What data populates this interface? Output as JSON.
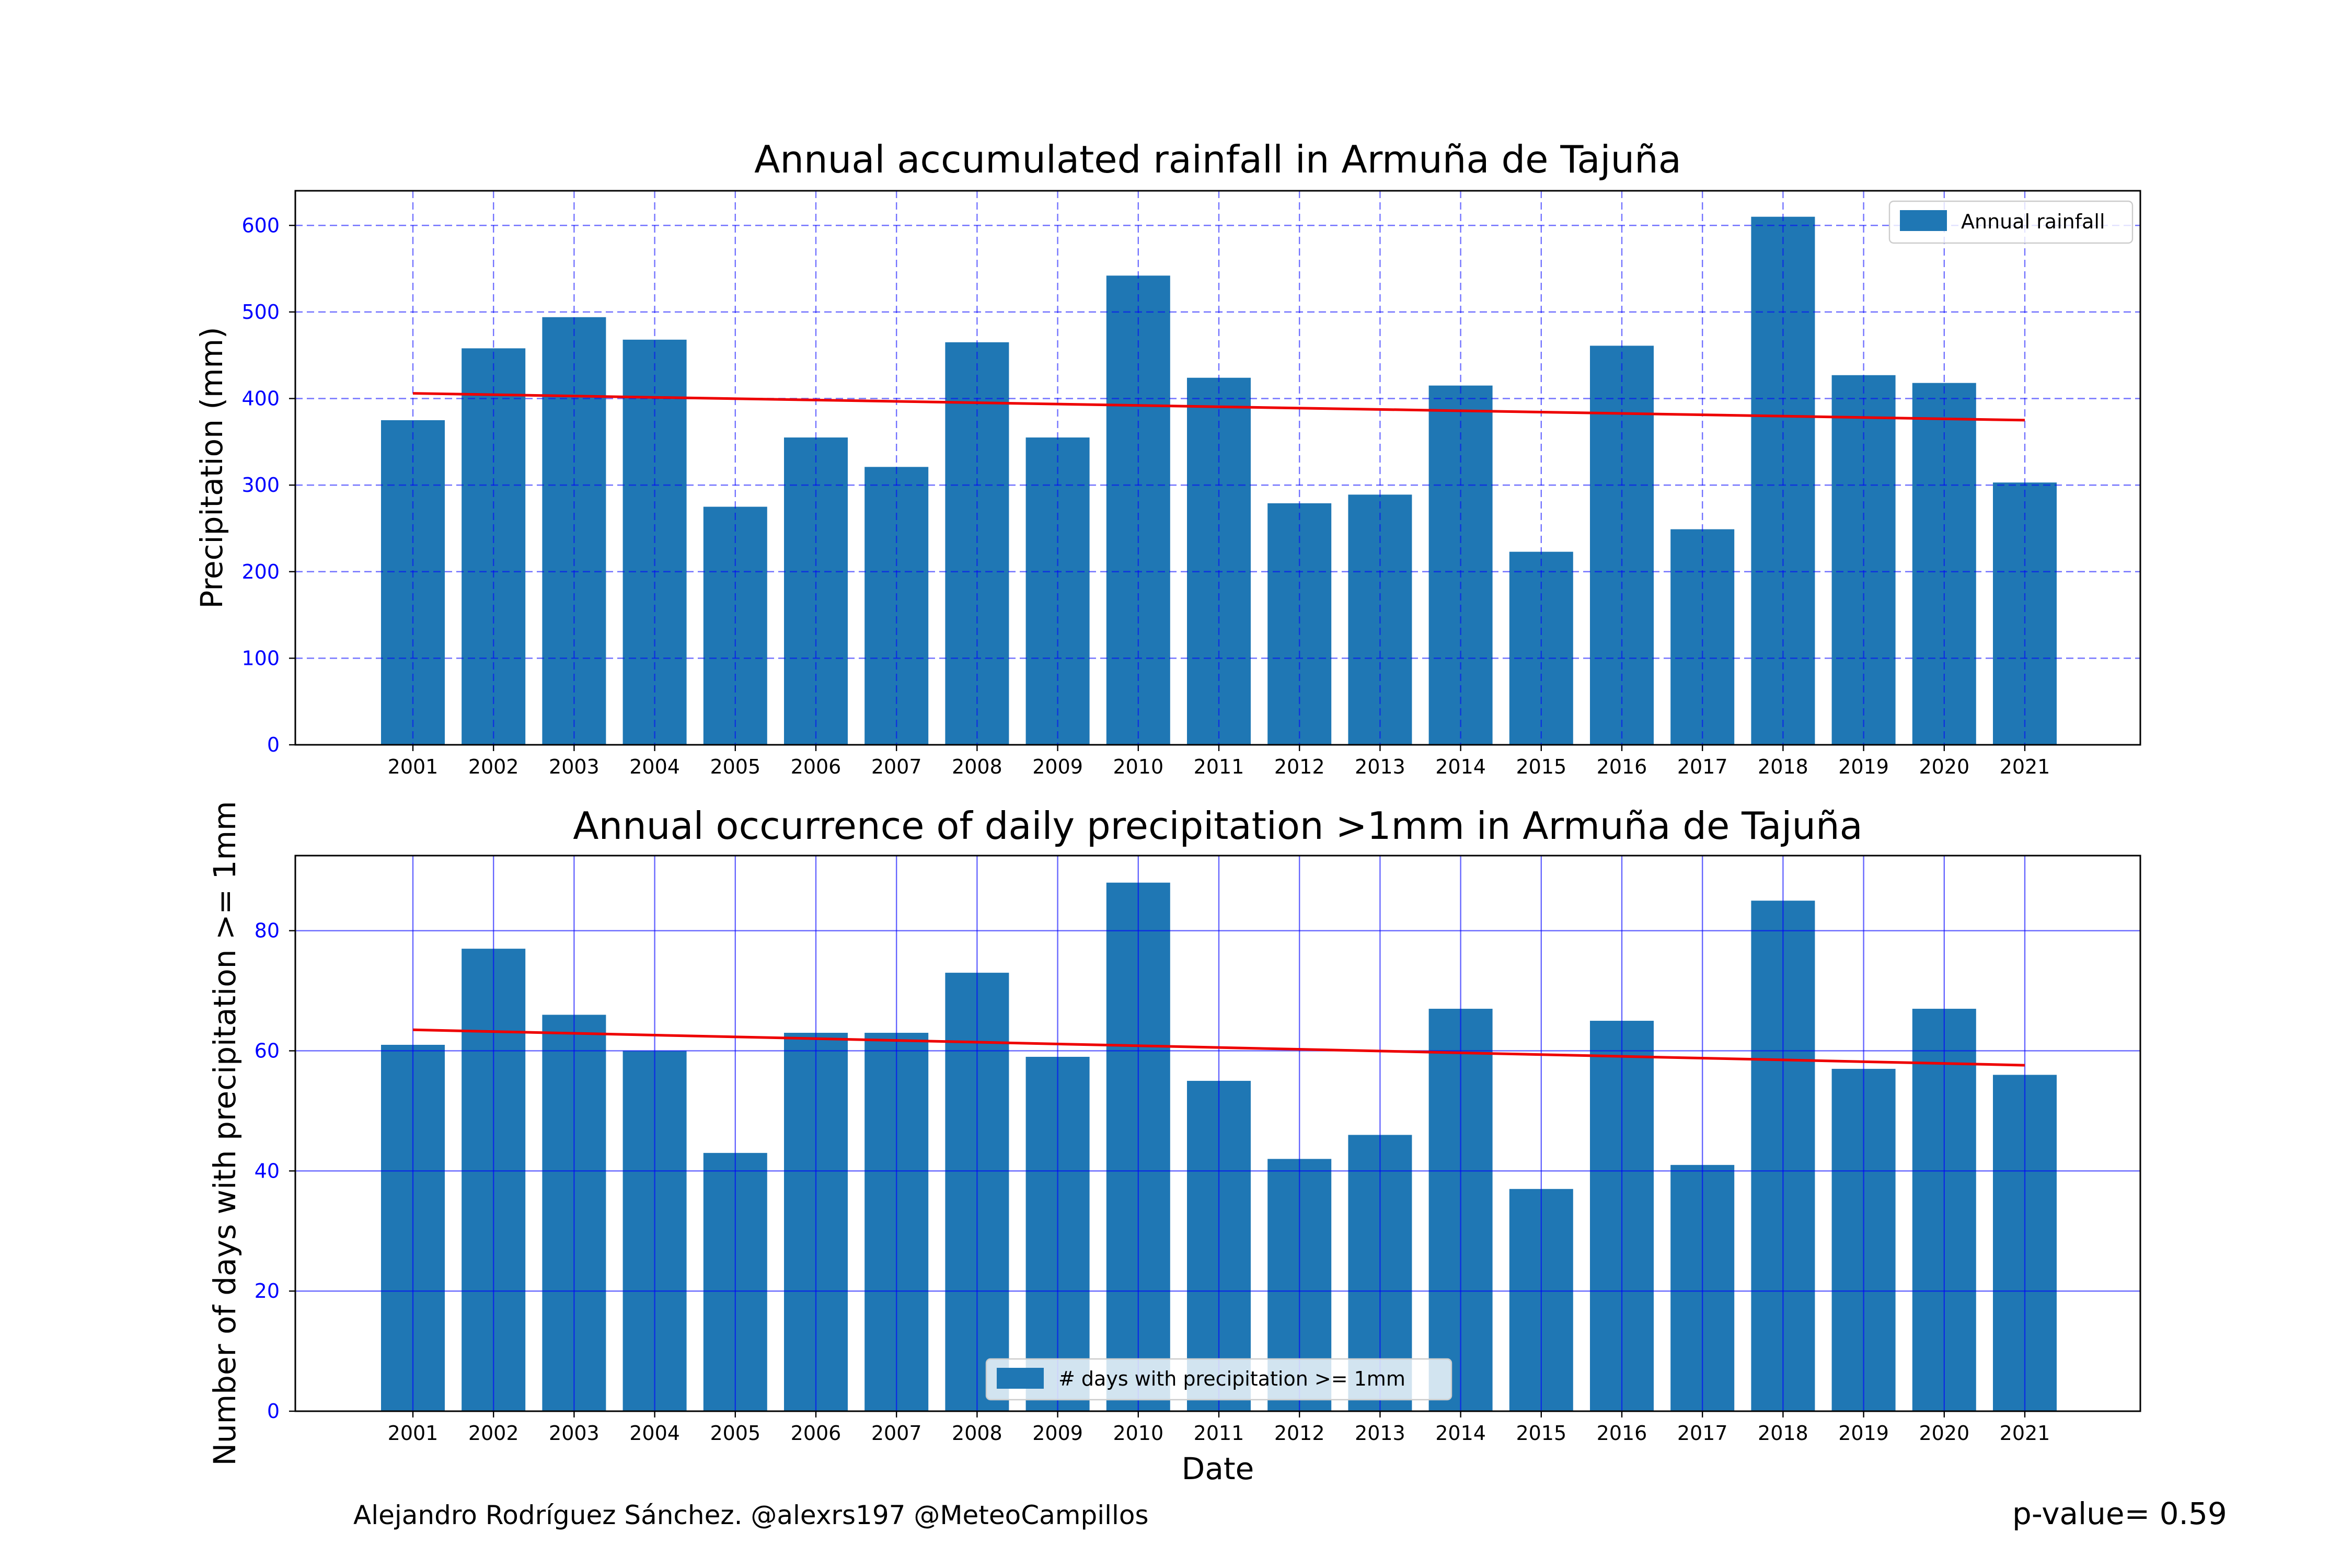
{
  "chart_data": [
    {
      "type": "bar",
      "title": "Annual accumulated rainfall in Armuña de Tajuña",
      "xlabel": "",
      "ylabel": "Precipitation (mm)",
      "categories": [
        "2001",
        "2002",
        "2003",
        "2004",
        "2005",
        "2006",
        "2007",
        "2008",
        "2009",
        "2010",
        "2011",
        "2012",
        "2013",
        "2014",
        "2015",
        "2016",
        "2017",
        "2018",
        "2019",
        "2020",
        "2021"
      ],
      "series": [
        {
          "name": "Annual rainfall",
          "values": [
            375,
            458,
            494,
            468,
            275,
            355,
            321,
            465,
            355,
            542,
            424,
            279,
            289,
            415,
            223,
            461,
            249,
            610,
            427,
            418,
            303
          ]
        }
      ],
      "trend": {
        "start": 406,
        "end": 375
      },
      "ylim": [
        0,
        640
      ],
      "yticks": [
        0,
        100,
        200,
        300,
        400,
        500,
        600
      ],
      "grid": "dashed",
      "legend": "top-right",
      "colors": {
        "bar": "#1f77b4",
        "trend": "#ee0000",
        "grid": "#0000ff",
        "ytick": "#0000ff"
      }
    },
    {
      "type": "bar",
      "title": "Annual occurrence of daily precipitation >1mm in Armuña de Tajuña",
      "xlabel": "Date",
      "ylabel": "Number of days with precipitation >= 1mm",
      "categories": [
        "2001",
        "2002",
        "2003",
        "2004",
        "2005",
        "2006",
        "2007",
        "2008",
        "2009",
        "2010",
        "2011",
        "2012",
        "2013",
        "2014",
        "2015",
        "2016",
        "2017",
        "2018",
        "2019",
        "2020",
        "2021"
      ],
      "series": [
        {
          "name": "# days with precipitation >= 1mm",
          "values": [
            61,
            77,
            66,
            60,
            43,
            63,
            63,
            73,
            59,
            88,
            55,
            42,
            46,
            67,
            37,
            65,
            41,
            85,
            57,
            67,
            56
          ]
        }
      ],
      "trend": {
        "start": 63.5,
        "end": 57.6
      },
      "ylim": [
        0,
        92.5
      ],
      "yticks": [
        0,
        20,
        40,
        60,
        80
      ],
      "grid": "solid",
      "legend": "bottom-center",
      "colors": {
        "bar": "#1f77b4",
        "trend": "#ee0000",
        "grid": "#0000ff",
        "ytick": "#0000ff"
      }
    }
  ],
  "footer": {
    "credit": "Alejandro Rodríguez Sánchez. @alexrs197 @MeteoCampillos",
    "pvalue": "p-value= 0.59"
  }
}
